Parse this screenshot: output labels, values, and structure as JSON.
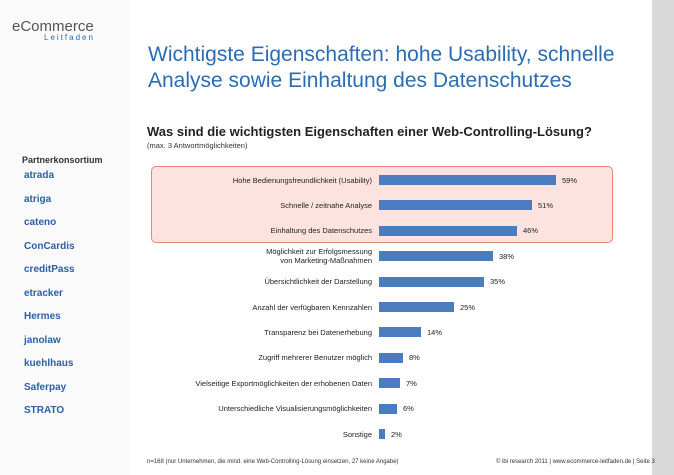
{
  "header": {
    "brand": "eCommerce",
    "brand_sub": "Leitfaden"
  },
  "sidebar": {
    "heading": "Partnerkonsortium",
    "partners": [
      "atrada",
      "atriga",
      "cateno",
      "ConCardis",
      "creditPass",
      "etracker",
      "Hermes",
      "janolaw",
      "kuehlhaus",
      "Saferpay",
      "STRATO"
    ]
  },
  "title": "Wichtigste Eigenschaften: hohe Usability, schnelle\nAnalyse sowie Einhaltung des Datenschutzes",
  "chart_data": {
    "type": "bar",
    "orientation": "horizontal",
    "title": "Was sind die wichtigsten Eigenschaften einer Web-Controlling-Lösung?",
    "subtitle": "(max. 3 Antwortmöglichkeiten)",
    "categories": [
      "Hohe Bedienungsfreundlichkeit (Usability)",
      "Schnelle / zeitnahe Analyse",
      "Einhaltung des Datenschutzes",
      "Möglichkeit zur Erfolgsmessung\nvon Marketing-Maßnahmen",
      "Übersichtlichkeit der Darstellung",
      "Anzahl der verfügbaren Kennzahlen",
      "Transparenz bei Datenerhebung",
      "Zugriff mehrerer Benutzer möglich",
      "Vielseitige Exportmöglichkeiten der erhobenen Daten",
      "Unterschiedliche Visualisierungsmöglichkeiten",
      "Sonstige"
    ],
    "values": [
      59,
      51,
      46,
      38,
      35,
      25,
      14,
      8,
      7,
      6,
      2
    ],
    "value_labels": [
      "59%",
      "51%",
      "46%",
      "38%",
      "35%",
      "25%",
      "14%",
      "8%",
      "7%",
      "6%",
      "2%"
    ],
    "color": "#4a7cbf"
  },
  "footnote": "n=168 (nur Unternehmen, die mind. eine Web-Controlling-Lösung einsetzen, 27 keine Angabe)",
  "copyright": "© ibi research 2011 | www.ecommerce-leitfaden.de | Seite 3"
}
